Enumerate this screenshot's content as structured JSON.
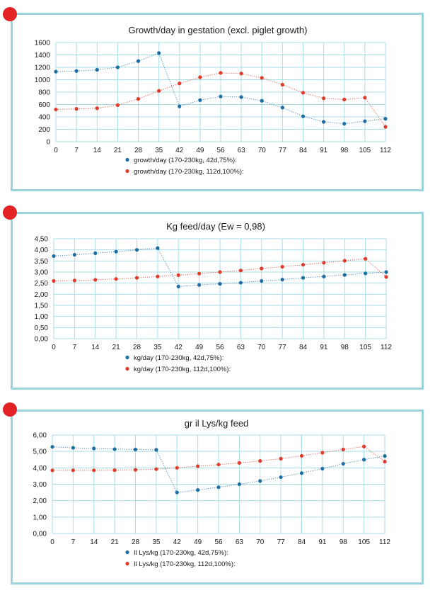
{
  "colors": {
    "blue": "#1f6ea3",
    "red": "#e03c2c",
    "grid": "#a9dde6",
    "border": "#9dd3dc",
    "marker": "#e32226"
  },
  "chart_data": [
    {
      "type": "scatter",
      "title": "Growth/day in gestation (excl. piglet growth)",
      "x": [
        0,
        7,
        14,
        21,
        28,
        35,
        42,
        49,
        56,
        63,
        70,
        77,
        84,
        91,
        98,
        105,
        112
      ],
      "xticks": [
        "0",
        "7",
        "14",
        "21",
        "28",
        "35",
        "42",
        "49",
        "56",
        "63",
        "70",
        "77",
        "84",
        "91",
        "98",
        "105",
        "112"
      ],
      "ylim": [
        0,
        1600
      ],
      "yticks": [
        "0",
        "200",
        "400",
        "600",
        "800",
        "1000",
        "1200",
        "1400",
        "1600"
      ],
      "grid": true,
      "legend_position": "bottom",
      "series": [
        {
          "name": "growth/day (170-230kg, 42d,75%):",
          "color": "#1f6ea3",
          "values": [
            1130,
            1140,
            1160,
            1200,
            1300,
            1430,
            570,
            670,
            730,
            720,
            660,
            550,
            410,
            320,
            290,
            330,
            370
          ]
        },
        {
          "name": "growth/day (170-230kg, 112d,100%):",
          "color": "#e03c2c",
          "values": [
            520,
            530,
            540,
            590,
            690,
            820,
            940,
            1040,
            1110,
            1100,
            1030,
            920,
            790,
            700,
            680,
            710,
            240
          ]
        }
      ]
    },
    {
      "type": "scatter",
      "title": "Kg feed/day (Ew = 0,98)",
      "x": [
        0,
        7,
        14,
        21,
        28,
        35,
        42,
        49,
        56,
        63,
        70,
        77,
        84,
        91,
        98,
        105,
        112
      ],
      "xticks": [
        "0",
        "7",
        "14",
        "21",
        "28",
        "35",
        "42",
        "49",
        "56",
        "63",
        "70",
        "77",
        "84",
        "91",
        "98",
        "105",
        "112"
      ],
      "ylim": [
        0,
        4.5
      ],
      "yticks": [
        "0,00",
        "0,50",
        "1,00",
        "1,50",
        "2,00",
        "2,50",
        "3,00",
        "3,50",
        "4,00",
        "4,50"
      ],
      "grid": true,
      "legend_position": "bottom",
      "series": [
        {
          "name": "kg/day (170-230kg, 42d,75%):",
          "color": "#1f6ea3",
          "values": [
            3.72,
            3.78,
            3.85,
            3.92,
            4.0,
            4.08,
            2.35,
            2.42,
            2.47,
            2.52,
            2.6,
            2.66,
            2.74,
            2.8,
            2.87,
            2.94,
            3.0
          ]
        },
        {
          "name": "kg/day (170-230kg, 112d,100%):",
          "color": "#e03c2c",
          "values": [
            2.6,
            2.62,
            2.65,
            2.69,
            2.74,
            2.8,
            2.86,
            2.93,
            3.0,
            3.07,
            3.16,
            3.24,
            3.33,
            3.42,
            3.51,
            3.6,
            2.78
          ]
        }
      ]
    },
    {
      "type": "scatter",
      "title": "gr il Lys/kg feed",
      "x": [
        0,
        7,
        14,
        21,
        28,
        35,
        42,
        49,
        56,
        63,
        70,
        77,
        84,
        91,
        98,
        105,
        112
      ],
      "xticks": [
        "0",
        "7",
        "14",
        "21",
        "28",
        "35",
        "42",
        "49",
        "56",
        "63",
        "70",
        "77",
        "84",
        "91",
        "98",
        "105",
        "112"
      ],
      "ylim": [
        0,
        6
      ],
      "yticks": [
        "0,00",
        "1,00",
        "2,00",
        "3,00",
        "4,00",
        "5,00",
        "6,00"
      ],
      "grid": true,
      "legend_position": "bottom",
      "series": [
        {
          "name": "Il Lys/kg (170-230kg, 42d,75%):",
          "color": "#1f6ea3",
          "values": [
            5.28,
            5.22,
            5.18,
            5.14,
            5.12,
            5.1,
            2.5,
            2.65,
            2.82,
            3.0,
            3.2,
            3.43,
            3.68,
            3.95,
            4.25,
            4.5,
            4.72
          ]
        },
        {
          "name": "Il Lys/kg (170-230kg, 112d,100%):",
          "color": "#e03c2c",
          "values": [
            3.85,
            3.85,
            3.85,
            3.86,
            3.88,
            3.92,
            4.0,
            4.1,
            4.2,
            4.3,
            4.42,
            4.56,
            4.73,
            4.92,
            5.12,
            5.3,
            4.38
          ]
        }
      ]
    }
  ]
}
